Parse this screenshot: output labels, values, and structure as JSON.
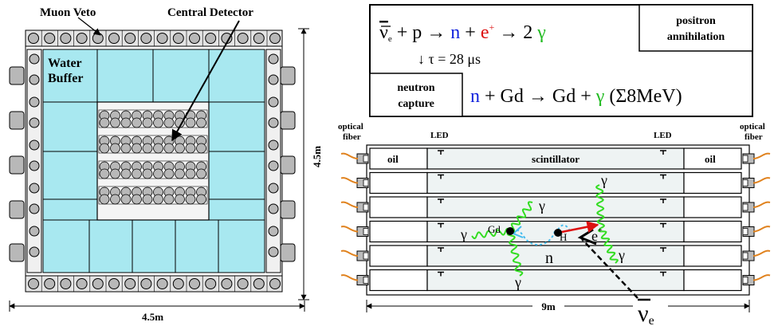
{
  "left_panel": {
    "muon_veto_label": "Muon Veto",
    "central_detector_label": "Central Detector",
    "water_buffer_line1": "Water",
    "water_buffer_line2": "Buffer",
    "width_label": "4.5m",
    "height_label": "4.5m"
  },
  "reaction_box": {
    "antinu": "ν",
    "antinu_sub": "e",
    "eq_rest": " + p → ",
    "n": "n",
    "plus": " + ",
    "e": "e",
    "e_sup": "+",
    "arrow2": " → 2 ",
    "gamma": "γ",
    "tau_line": "↓ τ = 28 μs",
    "positron_line1": "positron",
    "positron_line2": "annihilation",
    "neutron_line1": "neutron",
    "neutron_line2": "capture",
    "capture_n": "n",
    "capture_mid": " + Gd → Gd + ",
    "capture_gamma": "γ",
    "capture_energy": " (Σ8MeV)"
  },
  "right_panel": {
    "optical_fiber_left_1": "optical",
    "optical_fiber_left_2": "fiber",
    "optical_fiber_right_1": "optical",
    "optical_fiber_right_2": "fiber",
    "led_left": "LED",
    "led_right": "LED",
    "oil_left": "oil",
    "scintillator": "scintillator",
    "oil_right": "oil",
    "gamma_label": "γ",
    "gd_label": "Gd",
    "h_label": "H",
    "n_label": "n",
    "e_label": "e",
    "e_sup": "+",
    "length_label": "9m",
    "antinu_label": "ν",
    "antinu_sub": "e"
  },
  "colors": {
    "water": "#a8e8f0",
    "pmt": "#b8b8b8",
    "positron": "#dd1111",
    "neutron": "#1122dd",
    "gamma": "#22bb22",
    "wave": "#33dd22",
    "neutron_path": "#44bbee",
    "fiber": "#e0821e"
  }
}
